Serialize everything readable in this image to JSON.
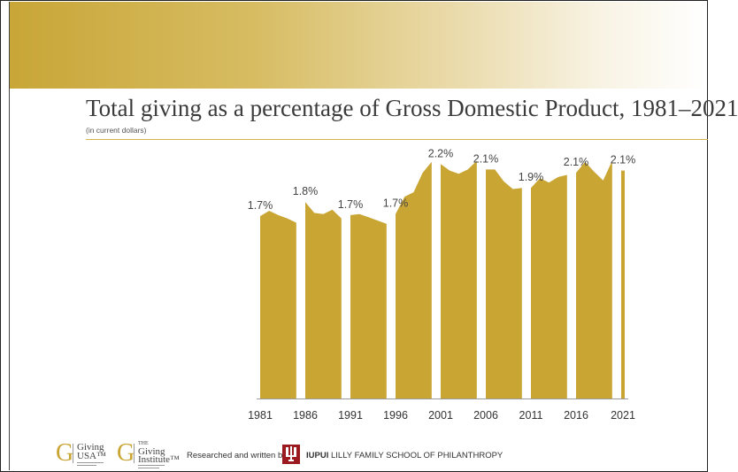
{
  "title": "Total giving as a percentage of Gross Domestic Product, 1981–2021",
  "subtitle": "(in current dollars)",
  "colors": {
    "fill": "#c9a534",
    "banner_start": "#c8a637",
    "rule": "#d4b54c",
    "text": "#3b3b3b",
    "iu_red": "#9a1a1f"
  },
  "chart_data": {
    "type": "area",
    "xlabel": "",
    "ylabel": "",
    "ylim": [
      0,
      2.35
    ],
    "x_ticks": [
      "1981",
      "1986",
      "1991",
      "1996",
      "2001",
      "2006",
      "2011",
      "2016",
      "2021"
    ],
    "segments": [
      {
        "years": [
          1981,
          1982,
          1983,
          1984,
          1985
        ],
        "values": [
          1.68,
          1.73,
          1.69,
          1.66,
          1.62
        ]
      },
      {
        "years": [
          1986,
          1987,
          1988,
          1989,
          1990
        ],
        "values": [
          1.81,
          1.71,
          1.7,
          1.74,
          1.66
        ]
      },
      {
        "years": [
          1991,
          1992,
          1993,
          1994,
          1995
        ],
        "values": [
          1.69,
          1.7,
          1.67,
          1.64,
          1.61
        ]
      },
      {
        "years": [
          1996,
          1997,
          1998,
          1999,
          2000
        ],
        "values": [
          1.7,
          1.86,
          1.9,
          2.08,
          2.18
        ]
      },
      {
        "years": [
          2001,
          2002,
          2003,
          2004,
          2005
        ],
        "values": [
          2.16,
          2.1,
          2.07,
          2.11,
          2.19
        ]
      },
      {
        "years": [
          2006,
          2007,
          2008,
          2009,
          2010
        ],
        "values": [
          2.11,
          2.11,
          2.0,
          1.93,
          1.94
        ]
      },
      {
        "years": [
          2011,
          2012,
          2013,
          2014,
          2015
        ],
        "values": [
          1.94,
          2.03,
          1.99,
          2.04,
          2.06
        ]
      },
      {
        "years": [
          2016,
          2017,
          2018,
          2019,
          2020
        ],
        "values": [
          2.08,
          2.18,
          2.09,
          2.01,
          2.19
        ]
      },
      {
        "years": [
          2021
        ],
        "values": [
          2.1
        ]
      }
    ],
    "data_labels": [
      {
        "year": 1981,
        "label": "1.7%"
      },
      {
        "year": 1986,
        "label": "1.8%"
      },
      {
        "year": 1991,
        "label": "1.7%"
      },
      {
        "year": 1996,
        "label": "1.7%"
      },
      {
        "year": 2001,
        "label": "2.2%"
      },
      {
        "year": 2006,
        "label": "2.1%"
      },
      {
        "year": 2011,
        "label": "1.9%"
      },
      {
        "year": 2016,
        "label": "2.1%"
      },
      {
        "year": 2021,
        "label": "2.1%"
      }
    ]
  },
  "footer": {
    "giving_usa": {
      "mark": "G",
      "line1": "Giving",
      "line2": "USA™"
    },
    "giving_institute": {
      "mark": "G",
      "small": "THE",
      "line1": "Giving",
      "line2": "Institute™"
    },
    "researched_by": "Researched and written by",
    "school_bold": "IUPUI",
    "school_rest": " LILLY FAMILY SCHOOL OF PHILANTHROPY"
  }
}
